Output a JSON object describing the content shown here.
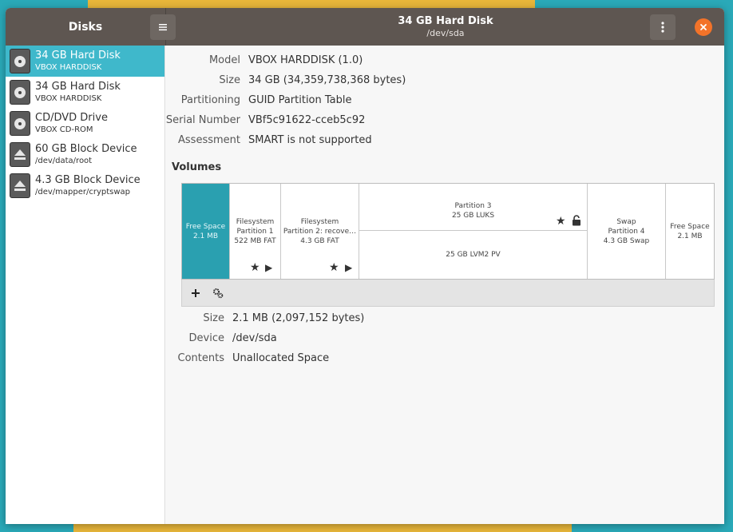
{
  "header": {
    "sidebar_title": "Disks",
    "title": "34 GB Hard Disk",
    "subtitle": "/dev/sda"
  },
  "sidebar": {
    "items": [
      {
        "name": "34 GB Hard Disk",
        "sub": "VBOX HARDDISK",
        "icon": "hard-disk-icon",
        "selected": true
      },
      {
        "name": "34 GB Hard Disk",
        "sub": "VBOX HARDDISK",
        "icon": "hard-disk-icon",
        "selected": false
      },
      {
        "name": "CD/DVD Drive",
        "sub": "VBOX CD-ROM",
        "icon": "optical-drive-icon",
        "selected": false
      },
      {
        "name": "60 GB Block Device",
        "sub": "/dev/data/root",
        "icon": "eject-icon",
        "selected": false
      },
      {
        "name": "4.3 GB Block Device",
        "sub": "/dev/mapper/cryptswap",
        "icon": "eject-icon",
        "selected": false
      }
    ]
  },
  "disk_info": {
    "model_label": "Model",
    "model": "VBOX HARDDISK (1.0)",
    "size_label": "Size",
    "size": "34 GB (34,359,738,368 bytes)",
    "partitioning_label": "Partitioning",
    "partitioning": "GUID Partition Table",
    "serial_label": "Serial Number",
    "serial": "VBf5c91622-cceb5c92",
    "assessment_label": "Assessment",
    "assessment": "SMART is not supported"
  },
  "volumes": {
    "heading": "Volumes",
    "segments": [
      {
        "line1": "Free Space",
        "line2": "2.1 MB"
      },
      {
        "line1": "Filesystem",
        "line2": "Partition 1",
        "line3": "522 MB FAT"
      },
      {
        "line1": "Filesystem",
        "line2": "Partition 2: recove…",
        "line3": "4.3 GB FAT"
      },
      {
        "line1": "Partition 3",
        "line2": "25 GB LUKS",
        "inner": "25 GB LVM2 PV"
      },
      {
        "line1": "Swap",
        "line2": "Partition 4",
        "line3": "4.3 GB Swap"
      },
      {
        "line1": "Free Space",
        "line2": "2.1 MB"
      }
    ]
  },
  "selected_volume": {
    "size_label": "Size",
    "size": "2.1 MB (2,097,152 bytes)",
    "device_label": "Device",
    "device": "/dev/sda",
    "contents_label": "Contents",
    "contents": "Unallocated Space"
  },
  "colors": {
    "accent": "#3fb8cb",
    "headerbar": "#5e5651",
    "close": "#f37329"
  }
}
